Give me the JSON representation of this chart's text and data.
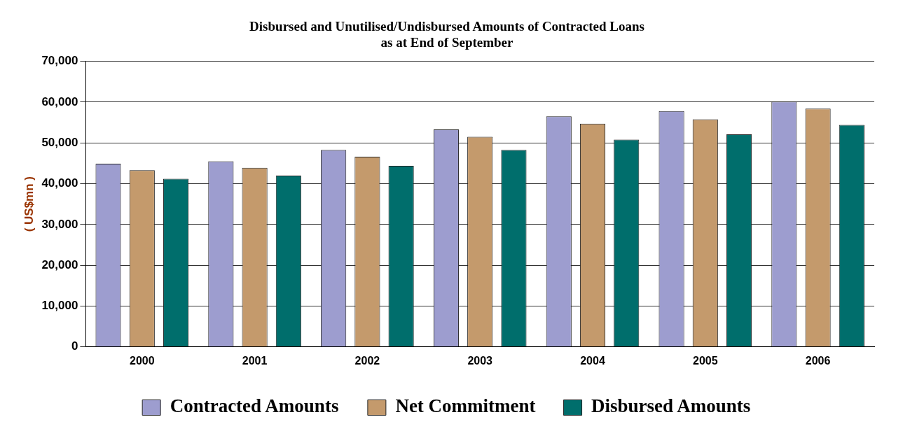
{
  "chart_data": {
    "type": "bar",
    "title": "Disbursed and Unutilised/Undisbursed Amounts of Contracted Loans\nas at End of September",
    "ylabel": "( US$mn )",
    "categories": [
      "2000",
      "2001",
      "2002",
      "2003",
      "2004",
      "2005",
      "2006"
    ],
    "series": [
      {
        "name": "Contracted Amounts",
        "color": "#9d9dcf",
        "values": [
          44900,
          45500,
          48300,
          53300,
          56500,
          57800,
          60100
        ]
      },
      {
        "name": "Net Commitment",
        "color": "#c49a6c",
        "values": [
          43300,
          43900,
          46600,
          51500,
          54700,
          55800,
          58400
        ]
      },
      {
        "name": "Disbursed Amounts",
        "color": "#006e6c",
        "values": [
          41200,
          42000,
          44400,
          48300,
          50800,
          52100,
          54400
        ]
      }
    ],
    "ylim": [
      0,
      70000
    ],
    "yticks": [
      0,
      {
        "value": 10000,
        "label": "10,000"
      },
      {
        "value": 20000,
        "label": "20,000"
      },
      {
        "value": 30000,
        "label": "30,000"
      },
      {
        "value": 40000,
        "label": "40,000"
      },
      {
        "value": 50000,
        "label": "50,000"
      },
      {
        "value": 60000,
        "label": "60,000"
      },
      {
        "value": 70000,
        "label": "70,000"
      }
    ],
    "grid": "y",
    "legend": "bottom"
  }
}
